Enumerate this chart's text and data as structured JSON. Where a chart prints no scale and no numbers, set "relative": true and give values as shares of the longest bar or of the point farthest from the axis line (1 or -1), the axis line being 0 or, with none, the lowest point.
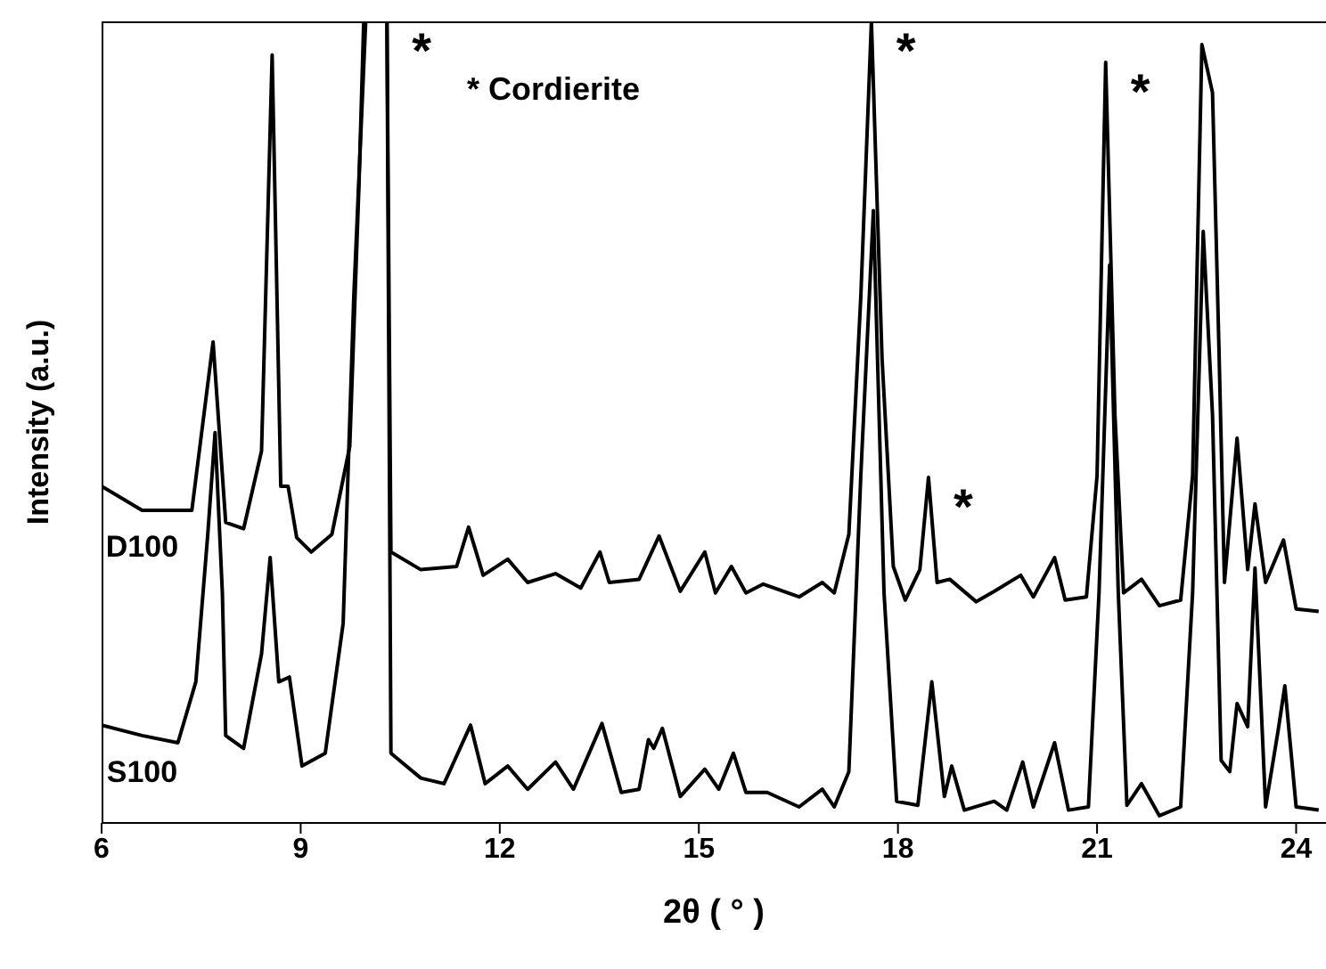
{
  "chart_data": {
    "type": "line",
    "xlabel": "2θ ( ° )",
    "ylabel": "Intensity (a.u.)",
    "relative": true,
    "xlim": [
      6,
      24.45
    ],
    "xticks": [
      6,
      9,
      12,
      15,
      18,
      21,
      24
    ],
    "legend": false,
    "marker": "none",
    "line_style": "solid",
    "annotations": [
      "* Cordierite",
      {
        "text": "*",
        "x": 10.3,
        "y": 1
      },
      {
        "text": "*",
        "x": 17.6,
        "y": 1
      },
      {
        "text": "*",
        "x": 18.46,
        "y": 0.431
      },
      {
        "text": "*",
        "x": 21.13,
        "y": 0.949
      }
    ],
    "series": [
      {
        "name": "D100",
        "color": "#000000",
        "x": [
          6.0,
          6.61,
          7.36,
          7.68,
          7.87,
          8.14,
          8.41,
          8.57,
          8.7,
          8.81,
          8.94,
          9.16,
          9.47,
          9.74,
          9.88,
          9.95,
          10.3,
          10.36,
          10.81,
          11.35,
          11.53,
          11.75,
          12.12,
          12.42,
          12.84,
          13.22,
          13.51,
          13.65,
          14.1,
          14.4,
          14.72,
          15.09,
          15.25,
          15.49,
          15.71,
          15.97,
          16.51,
          16.86,
          17.04,
          17.26,
          17.44,
          17.6,
          17.76,
          17.93,
          18.11,
          18.33,
          18.46,
          18.59,
          18.78,
          19.18,
          19.45,
          19.85,
          20.04,
          20.36,
          20.52,
          20.84,
          21.0,
          21.13,
          21.27,
          21.4,
          21.67,
          21.94,
          22.26,
          22.44,
          22.58,
          22.74,
          22.84,
          22.92,
          23.11,
          23.27,
          23.38,
          23.54,
          23.81,
          24.0,
          24.34
        ],
        "values": [
          0.42,
          0.39,
          0.39,
          0.6,
          0.375,
          0.367,
          0.464,
          0.958,
          0.42,
          0.42,
          0.356,
          0.338,
          0.36,
          0.47,
          0.8,
          1,
          1,
          0.338,
          0.316,
          0.32,
          0.369,
          0.309,
          0.329,
          0.3,
          0.311,
          0.293,
          0.338,
          0.3,
          0.304,
          0.358,
          0.289,
          0.338,
          0.287,
          0.32,
          0.287,
          0.298,
          0.282,
          0.3,
          0.287,
          0.36,
          0.656,
          1,
          0.58,
          0.32,
          0.278,
          0.316,
          0.431,
          0.3,
          0.304,
          0.276,
          0.289,
          0.309,
          0.282,
          0.331,
          0.278,
          0.282,
          0.433,
          0.949,
          0.509,
          0.287,
          0.304,
          0.271,
          0.278,
          0.433,
          0.971,
          0.911,
          0.582,
          0.3,
          0.48,
          0.316,
          0.398,
          0.3,
          0.353,
          0.267,
          0.264
        ]
      },
      {
        "name": "S100",
        "color": "#000000",
        "x": [
          6.0,
          6.61,
          7.15,
          7.42,
          7.6,
          7.71,
          7.82,
          7.87,
          8.14,
          8.41,
          8.54,
          8.67,
          8.83,
          9.02,
          9.37,
          9.64,
          9.8,
          9.98,
          10.3,
          10.36,
          10.81,
          11.16,
          11.56,
          11.78,
          12.12,
          12.42,
          12.84,
          13.11,
          13.54,
          13.83,
          14.1,
          14.24,
          14.32,
          14.45,
          14.72,
          15.09,
          15.3,
          15.52,
          15.71,
          16.03,
          16.51,
          16.86,
          17.04,
          17.26,
          17.44,
          17.63,
          17.79,
          17.98,
          18.3,
          18.51,
          18.7,
          18.81,
          19.0,
          19.45,
          19.64,
          19.88,
          20.04,
          20.36,
          20.57,
          20.87,
          21.03,
          21.19,
          21.32,
          21.45,
          21.67,
          21.94,
          22.26,
          22.44,
          22.6,
          22.74,
          22.87,
          23.0,
          23.11,
          23.27,
          23.38,
          23.54,
          23.73,
          23.83,
          24.0,
          24.34
        ],
        "values": [
          0.122,
          0.109,
          0.1,
          0.176,
          0.36,
          0.487,
          0.287,
          0.109,
          0.093,
          0.211,
          0.331,
          0.176,
          0.182,
          0.071,
          0.087,
          0.249,
          0.656,
          1,
          1,
          0.087,
          0.056,
          0.049,
          0.122,
          0.049,
          0.071,
          0.042,
          0.076,
          0.042,
          0.124,
          0.038,
          0.042,
          0.104,
          0.093,
          0.118,
          0.033,
          0.067,
          0.042,
          0.087,
          0.038,
          0.038,
          0.02,
          0.042,
          0.02,
          0.064,
          0.433,
          0.764,
          0.287,
          0.027,
          0.022,
          0.176,
          0.033,
          0.071,
          0.016,
          0.027,
          0.016,
          0.076,
          0.02,
          0.1,
          0.016,
          0.02,
          0.287,
          0.696,
          0.287,
          0.022,
          0.049,
          0.009,
          0.02,
          0.287,
          0.738,
          0.509,
          0.078,
          0.064,
          0.149,
          0.12,
          0.318,
          0.02,
          0.116,
          0.171,
          0.02,
          0.016
        ]
      }
    ]
  }
}
